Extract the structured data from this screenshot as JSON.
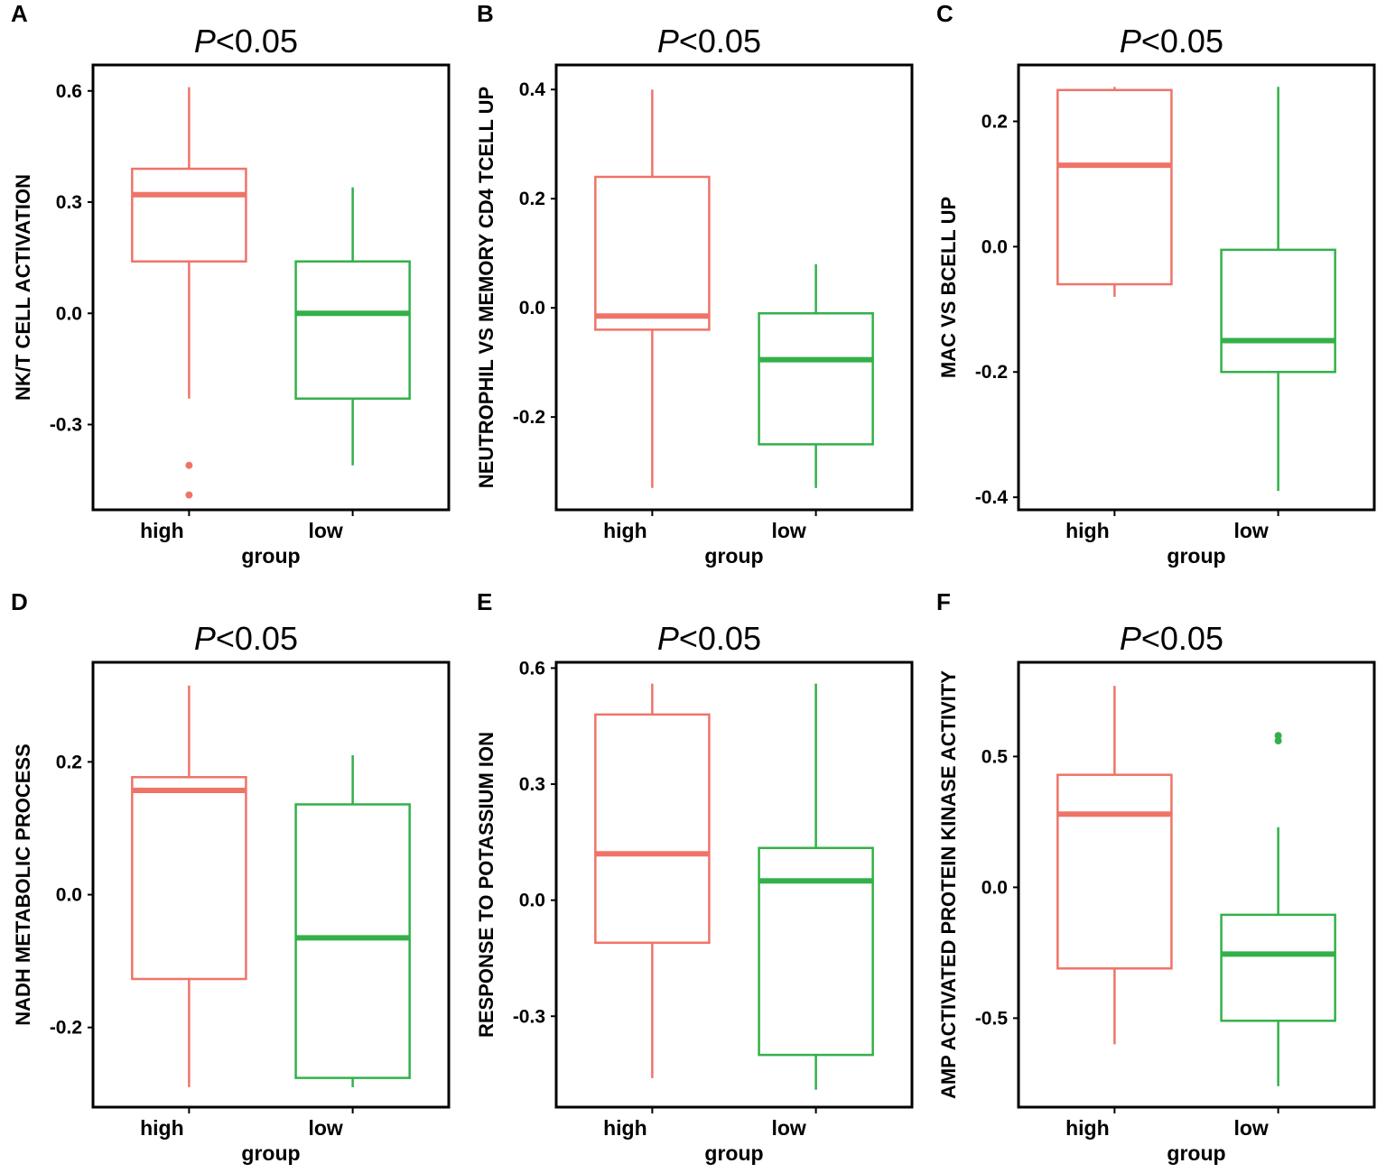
{
  "colors": {
    "high": "#ef7468",
    "low": "#34b04a",
    "axis": "#000000"
  },
  "chart_data": [
    {
      "type": "boxplot",
      "panel": "A",
      "title_p": "P",
      "title_rest": "<0.05",
      "xlabel": "group",
      "ylabel": "NK/T CELL ACTIVATION",
      "ylim": [
        -0.53,
        0.67
      ],
      "yticks": [
        -0.3,
        0.0,
        0.3,
        0.6
      ],
      "ytick_labels": [
        "-0.3",
        "0.0",
        "0.3",
        "0.6"
      ],
      "categories": [
        "high",
        "low"
      ],
      "boxes": [
        {
          "group": "high",
          "min": -0.23,
          "q1": 0.14,
          "median": 0.32,
          "q3": 0.39,
          "max": 0.61,
          "outliers": [
            -0.41,
            -0.49
          ]
        },
        {
          "group": "low",
          "min": -0.41,
          "q1": -0.23,
          "median": 0.0,
          "q3": 0.14,
          "max": 0.34,
          "outliers": []
        }
      ]
    },
    {
      "type": "boxplot",
      "panel": "B",
      "title_p": "P",
      "title_rest": "<0.05",
      "xlabel": "group",
      "ylabel": "NEUTROPHIL VS MEMORY CD4 TCELL UP",
      "ylim": [
        -0.37,
        0.445
      ],
      "yticks": [
        -0.2,
        0.0,
        0.2,
        0.4
      ],
      "ytick_labels": [
        "-0.2",
        "0.0",
        "0.2",
        "0.4"
      ],
      "categories": [
        "high",
        "low"
      ],
      "boxes": [
        {
          "group": "high",
          "min": -0.33,
          "q1": -0.04,
          "median": -0.015,
          "q3": 0.24,
          "max": 0.4,
          "outliers": []
        },
        {
          "group": "low",
          "min": -0.33,
          "q1": -0.25,
          "median": -0.095,
          "q3": -0.01,
          "max": 0.08,
          "outliers": []
        }
      ]
    },
    {
      "type": "boxplot",
      "panel": "C",
      "title_p": "P",
      "title_rest": "<0.05",
      "xlabel": "group",
      "ylabel": "MAC VS BCELL UP",
      "ylim": [
        -0.42,
        0.29
      ],
      "yticks": [
        -0.4,
        -0.2,
        0.0,
        0.2
      ],
      "ytick_labels": [
        "-0.4",
        "-0.2",
        "0.0",
        "0.2"
      ],
      "categories": [
        "high",
        "low"
      ],
      "boxes": [
        {
          "group": "high",
          "min": -0.08,
          "q1": -0.06,
          "median": 0.13,
          "q3": 0.25,
          "max": 0.255,
          "outliers": []
        },
        {
          "group": "low",
          "min": -0.39,
          "q1": -0.2,
          "median": -0.15,
          "q3": -0.005,
          "max": 0.255,
          "outliers": []
        }
      ]
    },
    {
      "type": "boxplot",
      "panel": "D",
      "title_p": "P",
      "title_rest": "<0.05",
      "xlabel": "group",
      "ylabel": "NADH METABOLIC PROCESS",
      "ylim": [
        -0.32,
        0.35
      ],
      "yticks": [
        -0.2,
        0.0,
        0.2
      ],
      "ytick_labels": [
        "-0.2",
        "0.0",
        "0.2"
      ],
      "categories": [
        "high",
        "low"
      ],
      "boxes": [
        {
          "group": "high",
          "min": -0.29,
          "q1": -0.127,
          "median": 0.157,
          "q3": 0.177,
          "max": 0.315,
          "outliers": []
        },
        {
          "group": "low",
          "min": -0.29,
          "q1": -0.276,
          "median": -0.065,
          "q3": 0.136,
          "max": 0.21,
          "outliers": []
        }
      ]
    },
    {
      "type": "boxplot",
      "panel": "E",
      "title_p": "P",
      "title_rest": "<0.05",
      "xlabel": "group",
      "ylabel": "RESPONSE TO POTASSIUM ION",
      "ylim": [
        -0.535,
        0.615
      ],
      "yticks": [
        -0.3,
        0.0,
        0.3,
        0.6
      ],
      "ytick_labels": [
        "-0.3",
        "0.0",
        "0.3",
        "0.6"
      ],
      "categories": [
        "high",
        "low"
      ],
      "boxes": [
        {
          "group": "high",
          "min": -0.46,
          "q1": -0.11,
          "median": 0.12,
          "q3": 0.48,
          "max": 0.56,
          "outliers": []
        },
        {
          "group": "low",
          "min": -0.49,
          "q1": -0.4,
          "median": 0.05,
          "q3": 0.135,
          "max": 0.56,
          "outliers": []
        }
      ]
    },
    {
      "type": "boxplot",
      "panel": "F",
      "title_p": "P",
      "title_rest": "<0.05",
      "xlabel": "group",
      "ylabel": "AMP ACTIVATED PROTEIN KINASE ACTIVITY",
      "ylim": [
        -0.84,
        0.86
      ],
      "yticks": [
        -0.5,
        0.0,
        0.5
      ],
      "ytick_labels": [
        "-0.5",
        "0.0",
        "0.5"
      ],
      "categories": [
        "high",
        "low"
      ],
      "boxes": [
        {
          "group": "high",
          "min": -0.6,
          "q1": -0.31,
          "median": 0.28,
          "q3": 0.43,
          "max": 0.77,
          "outliers": []
        },
        {
          "group": "low",
          "min": -0.76,
          "q1": -0.51,
          "median": -0.255,
          "q3": -0.105,
          "max": 0.23,
          "outliers": [
            0.58,
            0.56
          ]
        }
      ]
    }
  ]
}
